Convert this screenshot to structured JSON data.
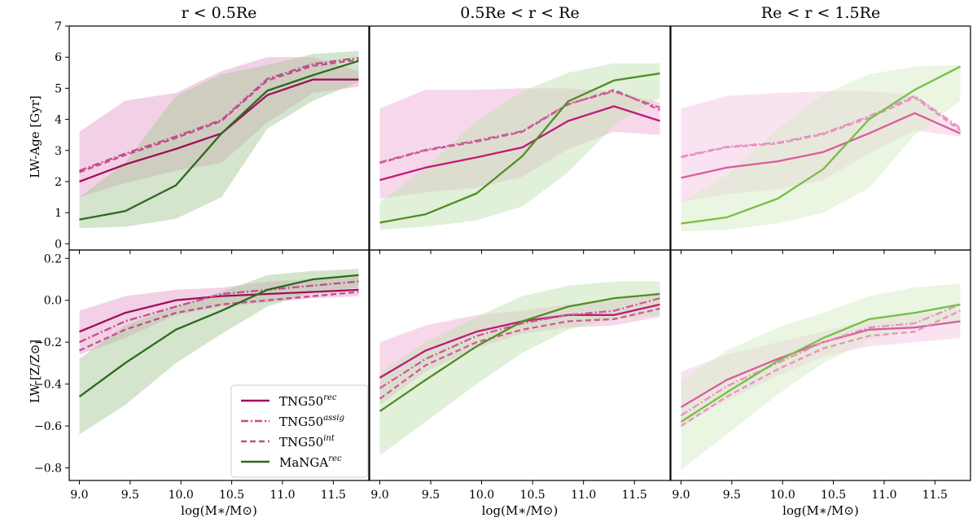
{
  "figure": {
    "panel_titles": [
      "r < 0.5Re",
      "0.5Re < r < Re",
      "Re < r < 1.5Re"
    ],
    "ylabel_top": "LW-Age [Gyr]",
    "ylabel_bottom": "LW-[Z/Z⊙]",
    "xlabel": "log(M∗/M⊙)",
    "legend": {
      "position": "lower-left of bottom-left panel",
      "entries": [
        {
          "base": "TNG50",
          "sup": "rec",
          "style": "solid",
          "color": "#a0105c"
        },
        {
          "base": "TNG50",
          "sup": "assig",
          "style": "dashdot",
          "color": "#c24d8c"
        },
        {
          "base": "TNG50",
          "sup": "int",
          "style": "dashed",
          "color": "#c24d8c"
        },
        {
          "base": "MaNGA",
          "sup": "rec",
          "style": "solid",
          "color": "#2c6a1d"
        }
      ]
    }
  },
  "chart_data": [
    {
      "type": "line",
      "panel": "top-left",
      "title": "r < 0.5Re",
      "xlabel": "",
      "ylabel": "LW-Age [Gyr]",
      "xlim": [
        8.9,
        11.85
      ],
      "ylim": [
        -0.2,
        7.0
      ],
      "xticks": [
        "9.0",
        "9.5",
        "10.0",
        "10.5",
        "11.0",
        "11.5"
      ],
      "yticks": [
        "0",
        "1",
        "2",
        "3",
        "4",
        "5",
        "6",
        "7"
      ],
      "x": [
        9.0,
        9.45,
        9.95,
        10.4,
        10.85,
        11.3,
        11.75
      ],
      "series": [
        {
          "name": "TNG50 rec",
          "style": "solid",
          "color": "#a0105c",
          "values": [
            2.0,
            2.55,
            3.05,
            3.55,
            4.78,
            5.28,
            5.28
          ],
          "band": {
            "low": [
              1.5,
              1.95,
              2.35,
              2.6,
              3.9,
              4.85,
              5.05
            ],
            "high": [
              3.6,
              4.6,
              4.85,
              5.55,
              6.0,
              6.0,
              5.55
            ],
            "color": "#e6a2cc"
          }
        },
        {
          "name": "TNG50 assig",
          "style": "dashdot",
          "color": "#c24d8c",
          "values": [
            2.35,
            2.9,
            3.45,
            3.98,
            5.3,
            5.78,
            5.98
          ]
        },
        {
          "name": "TNG50 int",
          "style": "dashed",
          "color": "#c24d8c",
          "values": [
            2.3,
            2.85,
            3.4,
            3.95,
            5.25,
            5.72,
            5.92
          ]
        },
        {
          "name": "MaNGA rec",
          "style": "solid",
          "color": "#2c6a1d",
          "values": [
            0.78,
            1.05,
            1.88,
            3.55,
            4.92,
            5.42,
            5.88
          ],
          "band": {
            "low": [
              0.5,
              0.55,
              0.8,
              1.5,
              3.7,
              4.6,
              5.2
            ],
            "high": [
              1.5,
              2.6,
              4.75,
              5.45,
              5.75,
              6.1,
              6.2
            ],
            "color": "#a9c99b"
          }
        }
      ]
    },
    {
      "type": "line",
      "panel": "top-middle",
      "title": "0.5Re < r < Re",
      "xlabel": "",
      "ylabel": "",
      "xlim": [
        8.9,
        11.85
      ],
      "ylim": [
        -0.2,
        7.0
      ],
      "xticks": [
        "9.0",
        "9.5",
        "10.0",
        "10.5",
        "11.0",
        "11.5"
      ],
      "yticks": [],
      "x": [
        9.0,
        9.45,
        9.95,
        10.4,
        10.85,
        11.3,
        11.75
      ],
      "series": [
        {
          "name": "TNG50 rec",
          "style": "solid",
          "color": "#c2187a",
          "values": [
            2.05,
            2.45,
            2.78,
            3.1,
            3.95,
            4.42,
            3.95
          ],
          "band": {
            "low": [
              1.45,
              1.65,
              1.8,
              2.15,
              3.05,
              3.6,
              3.5
            ],
            "high": [
              4.35,
              4.95,
              4.95,
              5.0,
              5.0,
              4.9,
              4.55
            ],
            "color": "#f0b2d6"
          }
        },
        {
          "name": "TNG50 assig",
          "style": "dashdot",
          "color": "#cc5c98",
          "values": [
            2.62,
            3.02,
            3.32,
            3.62,
            4.5,
            4.9,
            4.38
          ]
        },
        {
          "name": "TNG50 int",
          "style": "dashed",
          "color": "#cc5c98",
          "values": [
            2.6,
            3.0,
            3.28,
            3.6,
            4.48,
            4.95,
            4.3
          ]
        },
        {
          "name": "MaNGA rec",
          "style": "solid",
          "color": "#4f8e25",
          "values": [
            0.68,
            0.95,
            1.62,
            2.82,
            4.58,
            5.25,
            5.48
          ],
          "band": {
            "low": [
              0.45,
              0.55,
              0.75,
              1.2,
              2.3,
              3.8,
              4.7
            ],
            "high": [
              1.35,
              2.45,
              3.95,
              4.9,
              5.5,
              5.8,
              5.8
            ],
            "color": "#c4e2b4"
          }
        }
      ]
    },
    {
      "type": "line",
      "panel": "top-right",
      "title": "Re < r < 1.5Re",
      "xlabel": "",
      "ylabel": "",
      "xlim": [
        8.9,
        11.85
      ],
      "ylim": [
        -0.2,
        7.0
      ],
      "xticks": [
        "9.0",
        "9.5",
        "10.0",
        "10.5",
        "11.0",
        "11.5"
      ],
      "yticks": [],
      "x": [
        9.0,
        9.45,
        9.95,
        10.4,
        10.85,
        11.3,
        11.75
      ],
      "series": [
        {
          "name": "TNG50 rec",
          "style": "solid",
          "color": "#d95c9e",
          "values": [
            2.12,
            2.45,
            2.65,
            2.95,
            3.55,
            4.2,
            3.55
          ],
          "band": {
            "low": [
              1.35,
              1.6,
              1.75,
              2.05,
              2.9,
              3.65,
              3.45
            ],
            "high": [
              4.35,
              4.75,
              4.85,
              4.9,
              4.9,
              4.8,
              3.7
            ],
            "color": "#f6c8e2"
          }
        },
        {
          "name": "TNG50 assig",
          "style": "dashdot",
          "color": "#e693bf",
          "values": [
            2.8,
            3.12,
            3.25,
            3.55,
            4.1,
            4.75,
            3.72
          ]
        },
        {
          "name": "TNG50 int",
          "style": "dashed",
          "color": "#e693bf",
          "values": [
            2.78,
            3.1,
            3.22,
            3.52,
            4.05,
            4.7,
            3.65
          ]
        },
        {
          "name": "MaNGA rec",
          "style": "solid",
          "color": "#76c043",
          "values": [
            0.65,
            0.85,
            1.45,
            2.4,
            4.0,
            4.95,
            5.7
          ],
          "band": {
            "low": [
              0.4,
              0.45,
              0.65,
              1.0,
              1.8,
              3.5,
              4.6
            ],
            "high": [
              1.35,
              2.2,
              3.7,
              4.8,
              5.45,
              5.7,
              5.75
            ],
            "color": "#d6ecc6"
          }
        }
      ]
    },
    {
      "type": "line",
      "panel": "bottom-left",
      "title": "",
      "xlabel": "log(M∗/M⊙)",
      "ylabel": "LW-[Z/Z⊙]",
      "xlim": [
        8.9,
        11.85
      ],
      "ylim": [
        -0.86,
        0.24
      ],
      "xticks": [
        "9.0",
        "9.5",
        "10.0",
        "10.5",
        "11.0",
        "11.5"
      ],
      "yticks": [
        "−0.8",
        "−0.6",
        "−0.4",
        "−0.2",
        "0.0",
        "0.2"
      ],
      "x": [
        9.0,
        9.45,
        9.95,
        10.4,
        10.85,
        11.3,
        11.75
      ],
      "series": [
        {
          "name": "TNG50 rec",
          "style": "solid",
          "color": "#a0105c",
          "values": [
            -0.15,
            -0.06,
            0.0,
            0.02,
            0.03,
            0.04,
            0.05
          ],
          "band": {
            "low": [
              -0.26,
              -0.18,
              -0.07,
              -0.03,
              -0.01,
              0.01,
              0.02
            ],
            "high": [
              -0.05,
              0.02,
              0.05,
              0.06,
              0.09,
              0.1,
              0.11
            ],
            "color": "#e6a2cc"
          }
        },
        {
          "name": "TNG50 assig",
          "style": "dashdot",
          "color": "#c24d8c",
          "values": [
            -0.2,
            -0.1,
            -0.03,
            0.03,
            0.05,
            0.07,
            0.09
          ]
        },
        {
          "name": "TNG50 int",
          "style": "dashed",
          "color": "#c24d8c",
          "values": [
            -0.24,
            -0.14,
            -0.06,
            -0.02,
            0.0,
            0.02,
            0.04
          ]
        },
        {
          "name": "MaNGA rec",
          "style": "solid",
          "color": "#2c6a1d",
          "values": [
            -0.46,
            -0.3,
            -0.14,
            -0.05,
            0.05,
            0.1,
            0.12
          ],
          "band": {
            "low": [
              -0.64,
              -0.5,
              -0.3,
              -0.16,
              -0.03,
              0.04,
              0.06
            ],
            "high": [
              -0.28,
              -0.12,
              -0.03,
              0.04,
              0.12,
              0.14,
              0.15
            ],
            "color": "#a9c99b"
          }
        }
      ]
    },
    {
      "type": "line",
      "panel": "bottom-middle",
      "title": "",
      "xlabel": "log(M∗/M⊙)",
      "ylabel": "",
      "xlim": [
        8.9,
        11.85
      ],
      "ylim": [
        -0.86,
        0.24
      ],
      "xticks": [
        "9.0",
        "9.5",
        "10.0",
        "10.5",
        "11.0",
        "11.5"
      ],
      "yticks": [],
      "x": [
        9.0,
        9.45,
        9.95,
        10.4,
        10.85,
        11.3,
        11.75
      ],
      "series": [
        {
          "name": "TNG50 rec",
          "style": "solid",
          "color": "#c2187a",
          "values": [
            -0.37,
            -0.24,
            -0.15,
            -0.1,
            -0.07,
            -0.07,
            -0.02
          ],
          "band": {
            "low": [
              -0.5,
              -0.34,
              -0.23,
              -0.16,
              -0.13,
              -0.12,
              -0.08
            ],
            "high": [
              -0.2,
              -0.12,
              -0.07,
              -0.05,
              -0.02,
              0.0,
              0.04
            ],
            "color": "#f0b2d6"
          }
        },
        {
          "name": "TNG50 assig",
          "style": "dashdot",
          "color": "#cc5c98",
          "values": [
            -0.42,
            -0.28,
            -0.17,
            -0.11,
            -0.07,
            -0.05,
            0.01
          ]
        },
        {
          "name": "TNG50 int",
          "style": "dashed",
          "color": "#cc5c98",
          "values": [
            -0.47,
            -0.31,
            -0.2,
            -0.14,
            -0.1,
            -0.09,
            -0.04
          ]
        },
        {
          "name": "MaNGA rec",
          "style": "solid",
          "color": "#4f8e25",
          "values": [
            -0.53,
            -0.38,
            -0.22,
            -0.1,
            -0.03,
            0.01,
            0.03
          ],
          "band": {
            "low": [
              -0.74,
              -0.58,
              -0.4,
              -0.25,
              -0.14,
              -0.09,
              -0.07
            ],
            "high": [
              -0.35,
              -0.2,
              -0.08,
              0.02,
              0.07,
              0.09,
              0.09
            ],
            "color": "#c4e2b4"
          }
        }
      ]
    },
    {
      "type": "line",
      "panel": "bottom-right",
      "title": "",
      "xlabel": "log(M∗/M⊙)",
      "ylabel": "",
      "xlim": [
        8.9,
        11.85
      ],
      "ylim": [
        -0.86,
        0.24
      ],
      "xticks": [
        "9.0",
        "9.5",
        "10.0",
        "10.5",
        "11.0",
        "11.5"
      ],
      "yticks": [],
      "x": [
        9.0,
        9.45,
        9.95,
        10.4,
        10.85,
        11.3,
        11.75
      ],
      "series": [
        {
          "name": "TNG50 rec",
          "style": "solid",
          "color": "#d95c9e",
          "values": [
            -0.51,
            -0.38,
            -0.28,
            -0.2,
            -0.14,
            -0.13,
            -0.1
          ],
          "band": {
            "low": [
              -0.6,
              -0.48,
              -0.36,
              -0.27,
              -0.22,
              -0.2,
              -0.18
            ],
            "high": [
              -0.34,
              -0.26,
              -0.2,
              -0.15,
              -0.09,
              -0.07,
              -0.04
            ],
            "color": "#f6c8e2"
          }
        },
        {
          "name": "TNG50 assig",
          "style": "dashdot",
          "color": "#e693bf",
          "values": [
            -0.55,
            -0.41,
            -0.3,
            -0.2,
            -0.13,
            -0.11,
            -0.02
          ]
        },
        {
          "name": "TNG50 int",
          "style": "dashed",
          "color": "#e693bf",
          "values": [
            -0.6,
            -0.46,
            -0.33,
            -0.23,
            -0.17,
            -0.15,
            -0.05
          ]
        },
        {
          "name": "MaNGA rec",
          "style": "solid",
          "color": "#76c043",
          "values": [
            -0.58,
            -0.44,
            -0.29,
            -0.18,
            -0.09,
            -0.06,
            -0.02
          ],
          "band": {
            "low": [
              -0.81,
              -0.64,
              -0.45,
              -0.3,
              -0.19,
              -0.13,
              -0.11
            ],
            "high": [
              -0.38,
              -0.24,
              -0.13,
              -0.06,
              0.02,
              0.06,
              0.08
            ],
            "color": "#d6ecc6"
          }
        }
      ]
    }
  ]
}
